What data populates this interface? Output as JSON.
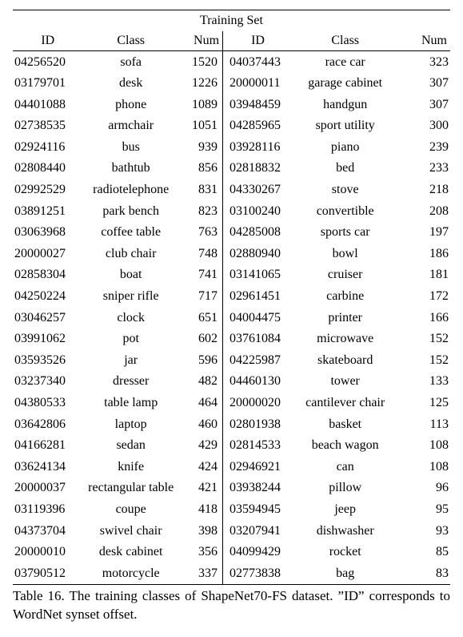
{
  "table": {
    "title": "Training Set",
    "headers": {
      "id": "ID",
      "cls": "Class",
      "num": "Num",
      "id2": "ID",
      "cls2": "Class",
      "num2": "Num"
    },
    "rows": [
      {
        "id": "04256520",
        "cls": "sofa",
        "num": "1520",
        "id2": "04037443",
        "cls2": "race car",
        "num2": "323"
      },
      {
        "id": "03179701",
        "cls": "desk",
        "num": "1226",
        "id2": "20000011",
        "cls2": "garage cabinet",
        "num2": "307"
      },
      {
        "id": "04401088",
        "cls": "phone",
        "num": "1089",
        "id2": "03948459",
        "cls2": "handgun",
        "num2": "307"
      },
      {
        "id": "02738535",
        "cls": "armchair",
        "num": "1051",
        "id2": "04285965",
        "cls2": "sport utility",
        "num2": "300"
      },
      {
        "id": "02924116",
        "cls": "bus",
        "num": "939",
        "id2": "03928116",
        "cls2": "piano",
        "num2": "239"
      },
      {
        "id": "02808440",
        "cls": "bathtub",
        "num": "856",
        "id2": "02818832",
        "cls2": "bed",
        "num2": "233"
      },
      {
        "id": "02992529",
        "cls": "radiotelephone",
        "num": "831",
        "id2": "04330267",
        "cls2": "stove",
        "num2": "218"
      },
      {
        "id": "03891251",
        "cls": "park bench",
        "num": "823",
        "id2": "03100240",
        "cls2": "convertible",
        "num2": "208"
      },
      {
        "id": "03063968",
        "cls": "coffee table",
        "num": "763",
        "id2": "04285008",
        "cls2": "sports car",
        "num2": "197"
      },
      {
        "id": "20000027",
        "cls": "club chair",
        "num": "748",
        "id2": "02880940",
        "cls2": "bowl",
        "num2": "186"
      },
      {
        "id": "02858304",
        "cls": "boat",
        "num": "741",
        "id2": "03141065",
        "cls2": "cruiser",
        "num2": "181"
      },
      {
        "id": "04250224",
        "cls": "sniper rifle",
        "num": "717",
        "id2": "02961451",
        "cls2": "carbine",
        "num2": "172"
      },
      {
        "id": "03046257",
        "cls": "clock",
        "num": "651",
        "id2": "04004475",
        "cls2": "printer",
        "num2": "166"
      },
      {
        "id": "03991062",
        "cls": "pot",
        "num": "602",
        "id2": "03761084",
        "cls2": "microwave",
        "num2": "152"
      },
      {
        "id": "03593526",
        "cls": "jar",
        "num": "596",
        "id2": "04225987",
        "cls2": "skateboard",
        "num2": "152"
      },
      {
        "id": "03237340",
        "cls": "dresser",
        "num": "482",
        "id2": "04460130",
        "cls2": "tower",
        "num2": "133"
      },
      {
        "id": "04380533",
        "cls": "table lamp",
        "num": "464",
        "id2": "20000020",
        "cls2": "cantilever chair",
        "num2": "125"
      },
      {
        "id": "03642806",
        "cls": "laptop",
        "num": "460",
        "id2": "02801938",
        "cls2": "basket",
        "num2": "113"
      },
      {
        "id": "04166281",
        "cls": "sedan",
        "num": "429",
        "id2": "02814533",
        "cls2": "beach wagon",
        "num2": "108"
      },
      {
        "id": "03624134",
        "cls": "knife",
        "num": "424",
        "id2": "02946921",
        "cls2": "can",
        "num2": "108"
      },
      {
        "id": "20000037",
        "cls": "rectangular table",
        "num": "421",
        "id2": "03938244",
        "cls2": "pillow",
        "num2": "96"
      },
      {
        "id": "03119396",
        "cls": "coupe",
        "num": "418",
        "id2": "03594945",
        "cls2": "jeep",
        "num2": "95"
      },
      {
        "id": "04373704",
        "cls": "swivel chair",
        "num": "398",
        "id2": "03207941",
        "cls2": "dishwasher",
        "num2": "93"
      },
      {
        "id": "20000010",
        "cls": "desk cabinet",
        "num": "356",
        "id2": "04099429",
        "cls2": "rocket",
        "num2": "85"
      },
      {
        "id": "03790512",
        "cls": "motorcycle",
        "num": "337",
        "id2": "02773838",
        "cls2": "bag",
        "num2": "83"
      }
    ]
  },
  "caption": "Table 16.   The training classes of ShapeNet70-FS dataset. ”ID” corresponds to WordNet synset offset."
}
